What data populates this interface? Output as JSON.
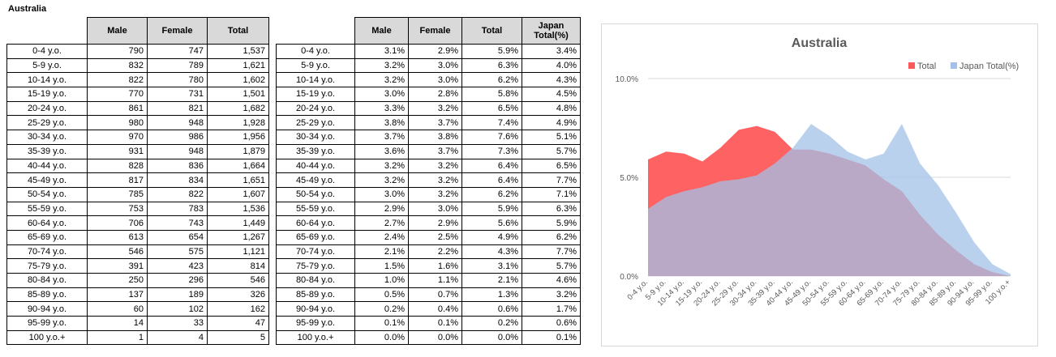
{
  "sheet": {
    "title": "Australia"
  },
  "table_counts": {
    "headers": [
      "Male",
      "Female",
      "Total"
    ],
    "rows": [
      [
        "0-4 y.o.",
        "790",
        "747",
        "1,537"
      ],
      [
        "5-9 y.o.",
        "832",
        "789",
        "1,621"
      ],
      [
        "10-14 y.o.",
        "822",
        "780",
        "1,602"
      ],
      [
        "15-19 y.o.",
        "770",
        "731",
        "1,501"
      ],
      [
        "20-24 y.o.",
        "861",
        "821",
        "1,682"
      ],
      [
        "25-29 y.o.",
        "980",
        "948",
        "1,928"
      ],
      [
        "30-34 y.o.",
        "970",
        "986",
        "1,956"
      ],
      [
        "35-39 y.o.",
        "931",
        "948",
        "1,879"
      ],
      [
        "40-44 y.o.",
        "828",
        "836",
        "1,664"
      ],
      [
        "45-49 y.o.",
        "817",
        "834",
        "1,651"
      ],
      [
        "50-54 y.o.",
        "785",
        "822",
        "1,607"
      ],
      [
        "55-59 y.o.",
        "753",
        "783",
        "1,536"
      ],
      [
        "60-64 y.o.",
        "706",
        "743",
        "1,449"
      ],
      [
        "65-69 y.o.",
        "613",
        "654",
        "1,267"
      ],
      [
        "70-74 y.o.",
        "546",
        "575",
        "1,121"
      ],
      [
        "75-79 y.o.",
        "391",
        "423",
        "814"
      ],
      [
        "80-84 y.o.",
        "250",
        "296",
        "546"
      ],
      [
        "85-89 y.o.",
        "137",
        "189",
        "326"
      ],
      [
        "90-94 y.o.",
        "60",
        "102",
        "162"
      ],
      [
        "95-99 y.o.",
        "14",
        "33",
        "47"
      ],
      [
        "100 y.o.+",
        "1",
        "4",
        "5"
      ]
    ]
  },
  "table_percent": {
    "headers": [
      "Male",
      "Female",
      "Total",
      "Japan Total(%)"
    ],
    "rows": [
      [
        "0-4 y.o.",
        "3.1%",
        "2.9%",
        "5.9%",
        "3.4%"
      ],
      [
        "5-9 y.o.",
        "3.2%",
        "3.0%",
        "6.3%",
        "4.0%"
      ],
      [
        "10-14 y.o.",
        "3.2%",
        "3.0%",
        "6.2%",
        "4.3%"
      ],
      [
        "15-19 y.o.",
        "3.0%",
        "2.8%",
        "5.8%",
        "4.5%"
      ],
      [
        "20-24 y.o.",
        "3.3%",
        "3.2%",
        "6.5%",
        "4.8%"
      ],
      [
        "25-29 y.o.",
        "3.8%",
        "3.7%",
        "7.4%",
        "4.9%"
      ],
      [
        "30-34 y.o.",
        "3.7%",
        "3.8%",
        "7.6%",
        "5.1%"
      ],
      [
        "35-39 y.o.",
        "3.6%",
        "3.7%",
        "7.3%",
        "5.7%"
      ],
      [
        "40-44 y.o.",
        "3.2%",
        "3.2%",
        "6.4%",
        "6.5%"
      ],
      [
        "45-49 y.o.",
        "3.2%",
        "3.2%",
        "6.4%",
        "7.7%"
      ],
      [
        "50-54 y.o.",
        "3.0%",
        "3.2%",
        "6.2%",
        "7.1%"
      ],
      [
        "55-59 y.o.",
        "2.9%",
        "3.0%",
        "5.9%",
        "6.3%"
      ],
      [
        "60-64 y.o.",
        "2.7%",
        "2.9%",
        "5.6%",
        "5.9%"
      ],
      [
        "65-69 y.o.",
        "2.4%",
        "2.5%",
        "4.9%",
        "6.2%"
      ],
      [
        "70-74 y.o.",
        "2.1%",
        "2.2%",
        "4.3%",
        "7.7%"
      ],
      [
        "75-79 y.o.",
        "1.5%",
        "1.6%",
        "3.1%",
        "5.7%"
      ],
      [
        "80-84 y.o.",
        "1.0%",
        "1.1%",
        "2.1%",
        "4.6%"
      ],
      [
        "85-89 y.o.",
        "0.5%",
        "0.7%",
        "1.3%",
        "3.2%"
      ],
      [
        "90-94 y.o.",
        "0.2%",
        "0.4%",
        "0.6%",
        "1.7%"
      ],
      [
        "95-99 y.o.",
        "0.1%",
        "0.1%",
        "0.2%",
        "0.6%"
      ],
      [
        "100 y.o.+",
        "0.0%",
        "0.0%",
        "0.0%",
        "0.1%"
      ]
    ]
  },
  "chart_data": {
    "type": "area",
    "title": "Australia",
    "categories": [
      "0-4 y.o.",
      "5-9 y.o.",
      "10-14 y.o.",
      "15-19 y.o.",
      "20-24 y.o.",
      "25-29 y.o.",
      "30-34 y.o.",
      "35-39 y.o.",
      "40-44 y.o.",
      "45-49 y.o.",
      "50-54 y.o.",
      "55-59 y.o.",
      "60-64 y.o.",
      "65-69 y.o.",
      "70-74 y.o.",
      "75-79 y.o.",
      "80-84 y.o.",
      "85-89 y.o.",
      "90-94 y.o.",
      "95-99 y.o.",
      "100 y.o.+"
    ],
    "series": [
      {
        "name": "Total",
        "color": "#ff5a5a",
        "values": [
          5.9,
          6.3,
          6.2,
          5.8,
          6.5,
          7.4,
          7.6,
          7.3,
          6.4,
          6.4,
          6.2,
          5.9,
          5.6,
          4.9,
          4.3,
          3.1,
          2.1,
          1.3,
          0.6,
          0.2,
          0.0
        ]
      },
      {
        "name": "Japan Total(%)",
        "color": "#a3c1e8",
        "values": [
          3.4,
          4.0,
          4.3,
          4.5,
          4.8,
          4.9,
          5.1,
          5.7,
          6.5,
          7.7,
          7.1,
          6.3,
          5.9,
          6.2,
          7.7,
          5.7,
          4.6,
          3.2,
          1.7,
          0.6,
          0.1
        ]
      }
    ],
    "yticks": [
      "0.0%",
      "5.0%",
      "10.0%"
    ],
    "ylim": [
      0,
      10
    ],
    "grid": true,
    "legend": "top-right"
  }
}
